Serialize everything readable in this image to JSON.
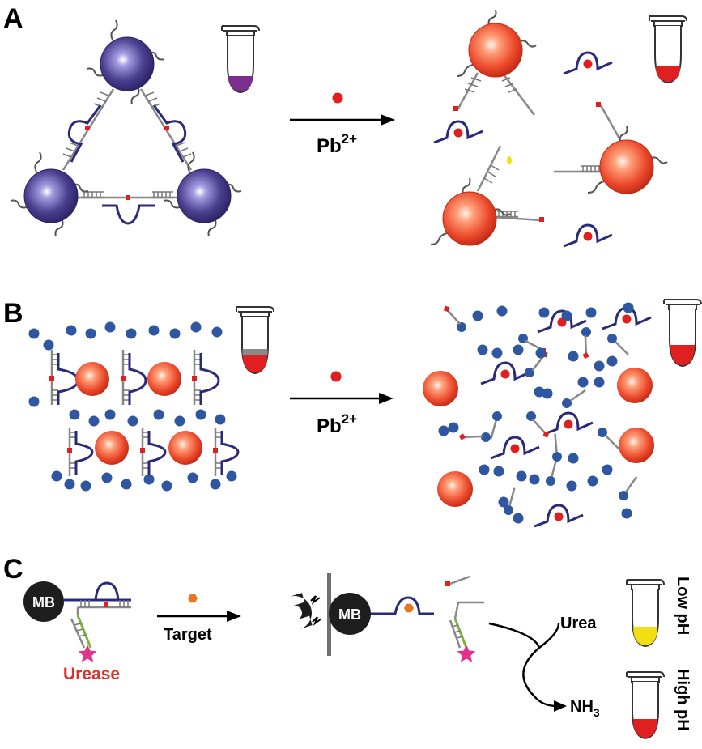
{
  "panels": {
    "a": {
      "label": "A",
      "arrow_label": "Pb",
      "arrow_sup": "2+"
    },
    "b": {
      "label": "B",
      "arrow_label": "Pb",
      "arrow_sup": "2+"
    },
    "c": {
      "label": "C",
      "mb": "MB",
      "urease": "Urease",
      "target": "Target",
      "urea": "Urea",
      "nh3": "NH",
      "nh3_sub": "3",
      "low_ph": "Low pH",
      "high_ph": "High pH"
    }
  },
  "colors": {
    "purple_np": "#4b3f8f",
    "red_np": "#e8452d",
    "blue_dot": "#2f56a0",
    "dna_strand": "#888888",
    "enzyme_strand": "#2a2a7a",
    "pb_ion": "#e02020",
    "target_hex": "#e87722",
    "star": "#e0338c",
    "yellow": "#f2df12",
    "urease_text": "#e0302a",
    "magnet": "#1e1e1e"
  },
  "icons": [
    "microcentrifuge-tube-icon",
    "magnet-icon",
    "star-icon",
    "hexagon-icon"
  ]
}
